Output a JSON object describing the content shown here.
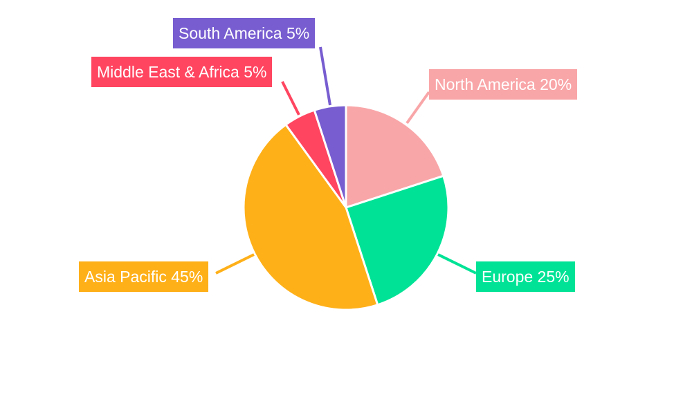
{
  "chart_data": {
    "type": "pie",
    "start_angle": "12 o'clock, clockwise",
    "slices": [
      {
        "name": "North America",
        "value": 20,
        "label": "North America 20%",
        "color": "#F9A6A8"
      },
      {
        "name": "Europe",
        "value": 25,
        "label": "Europe 25%",
        "color": "#00E396"
      },
      {
        "name": "Asia Pacific",
        "value": 45,
        "label": "Asia Pacific 45%",
        "color": "#FEB019"
      },
      {
        "name": "Middle East & Africa",
        "value": 5,
        "label": "Middle East & Africa 5%",
        "color": "#FF4560"
      },
      {
        "name": "South America",
        "value": 5,
        "label": "South America 5%",
        "color": "#775DD0"
      }
    ],
    "legend": "none",
    "data_labels": "outside with leader lines"
  }
}
